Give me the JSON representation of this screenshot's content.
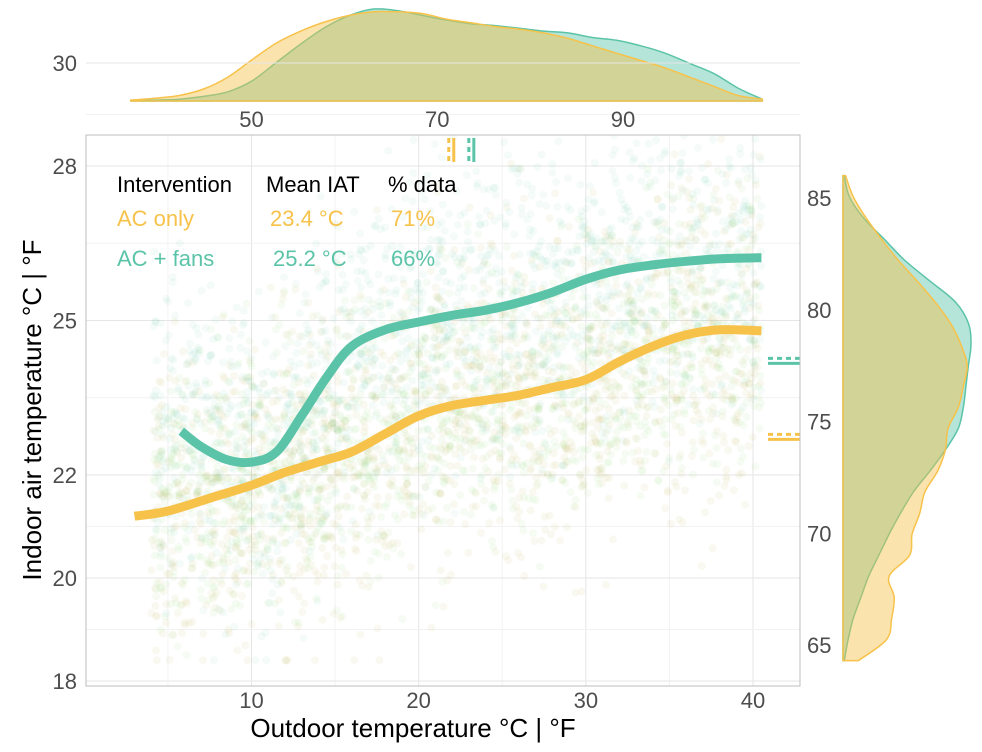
{
  "chart_data": {
    "type": "scatter",
    "title": "",
    "xlabel": "Outdoor temperature °C | °F",
    "ylabel": "Indoor air temperature °C | °F",
    "xlim": [
      0,
      42
    ],
    "ylim": [
      17.8,
      30.6
    ],
    "x_ticks": [
      10,
      20,
      30,
      40
    ],
    "y_ticks": [
      18,
      20,
      22,
      25,
      28,
      30
    ],
    "top_axis_ticks_F": [
      50,
      70,
      90
    ],
    "right_axis_ticks_F": [
      65,
      70,
      75,
      80,
      85
    ],
    "grid": true,
    "legend": {
      "placement": "top-left",
      "header": [
        "Intervention",
        "Mean IAT",
        "% data"
      ],
      "rows": [
        {
          "series": "AC only",
          "mean_iat": "23.4 °C",
          "pct": "71%"
        },
        {
          "series": "AC + fans",
          "mean_iat": "25.2 °C",
          "pct": "66%"
        }
      ]
    },
    "series": [
      {
        "name": "AC only",
        "color": "#F7C24A",
        "smooth_curve": {
          "x": [
            3,
            5,
            8,
            10,
            12,
            14,
            16,
            18,
            20,
            22,
            24,
            26,
            28,
            30,
            32,
            34,
            36,
            38,
            40.5
          ],
          "y": [
            21.2,
            21.3,
            21.6,
            21.8,
            22.05,
            22.25,
            22.45,
            22.8,
            23.15,
            23.35,
            23.45,
            23.55,
            23.7,
            23.85,
            24.2,
            24.5,
            24.72,
            24.82,
            24.8
          ]
        },
        "median_outdoor_C": 22.1,
        "median_indoor_F": 74.2
      },
      {
        "name": "AC + fans",
        "color": "#5BC4A8",
        "smooth_curve": {
          "x": [
            5.8,
            7,
            8.5,
            10,
            11.5,
            13,
            14.5,
            16,
            18,
            20,
            22,
            24,
            26,
            28,
            30,
            32,
            34,
            36,
            38,
            40.5
          ],
          "y": [
            22.85,
            22.55,
            22.3,
            22.25,
            22.45,
            23.15,
            23.9,
            24.5,
            24.82,
            24.97,
            25.1,
            25.2,
            25.35,
            25.55,
            25.8,
            25.98,
            26.08,
            26.15,
            26.2,
            26.22
          ]
        },
        "median_outdoor_C": 23.3,
        "median_indoor_F": 77.6
      }
    ],
    "top_density": {
      "x_range_F": [
        37,
        105
      ],
      "series": [
        {
          "name": "AC only",
          "values": [
            0.01,
            0.03,
            0.06,
            0.13,
            0.26,
            0.45,
            0.63,
            0.76,
            0.86,
            0.93,
            0.97,
            0.97,
            0.95,
            0.89,
            0.85,
            0.81,
            0.78,
            0.74,
            0.68,
            0.6,
            0.52,
            0.44,
            0.36,
            0.26,
            0.16,
            0.06,
            0.02
          ]
        },
        {
          "name": "AC + fans",
          "values": [
            0.0,
            0.01,
            0.02,
            0.05,
            0.1,
            0.22,
            0.42,
            0.62,
            0.8,
            0.93,
            1.0,
            0.98,
            0.93,
            0.88,
            0.84,
            0.82,
            0.79,
            0.76,
            0.74,
            0.69,
            0.66,
            0.6,
            0.52,
            0.41,
            0.3,
            0.14,
            0.02
          ]
        }
      ]
    },
    "right_density": {
      "y_range_F": [
        64.3,
        86
      ],
      "series": [
        {
          "name": "AC only",
          "values": [
            0.12,
            0.34,
            0.38,
            0.4,
            0.36,
            0.52,
            0.54,
            0.6,
            0.64,
            0.74,
            0.8,
            0.82,
            0.9,
            0.94,
            0.97,
            0.92,
            0.84,
            0.72,
            0.58,
            0.43,
            0.3,
            0.18,
            0.08,
            0.02
          ]
        },
        {
          "name": "AC + fans",
          "values": [
            0.01,
            0.04,
            0.08,
            0.14,
            0.2,
            0.28,
            0.36,
            0.45,
            0.55,
            0.68,
            0.8,
            0.9,
            0.94,
            0.96,
            0.98,
            1.0,
            0.98,
            0.88,
            0.68,
            0.48,
            0.32,
            0.16,
            0.05,
            0.01
          ]
        }
      ]
    }
  }
}
